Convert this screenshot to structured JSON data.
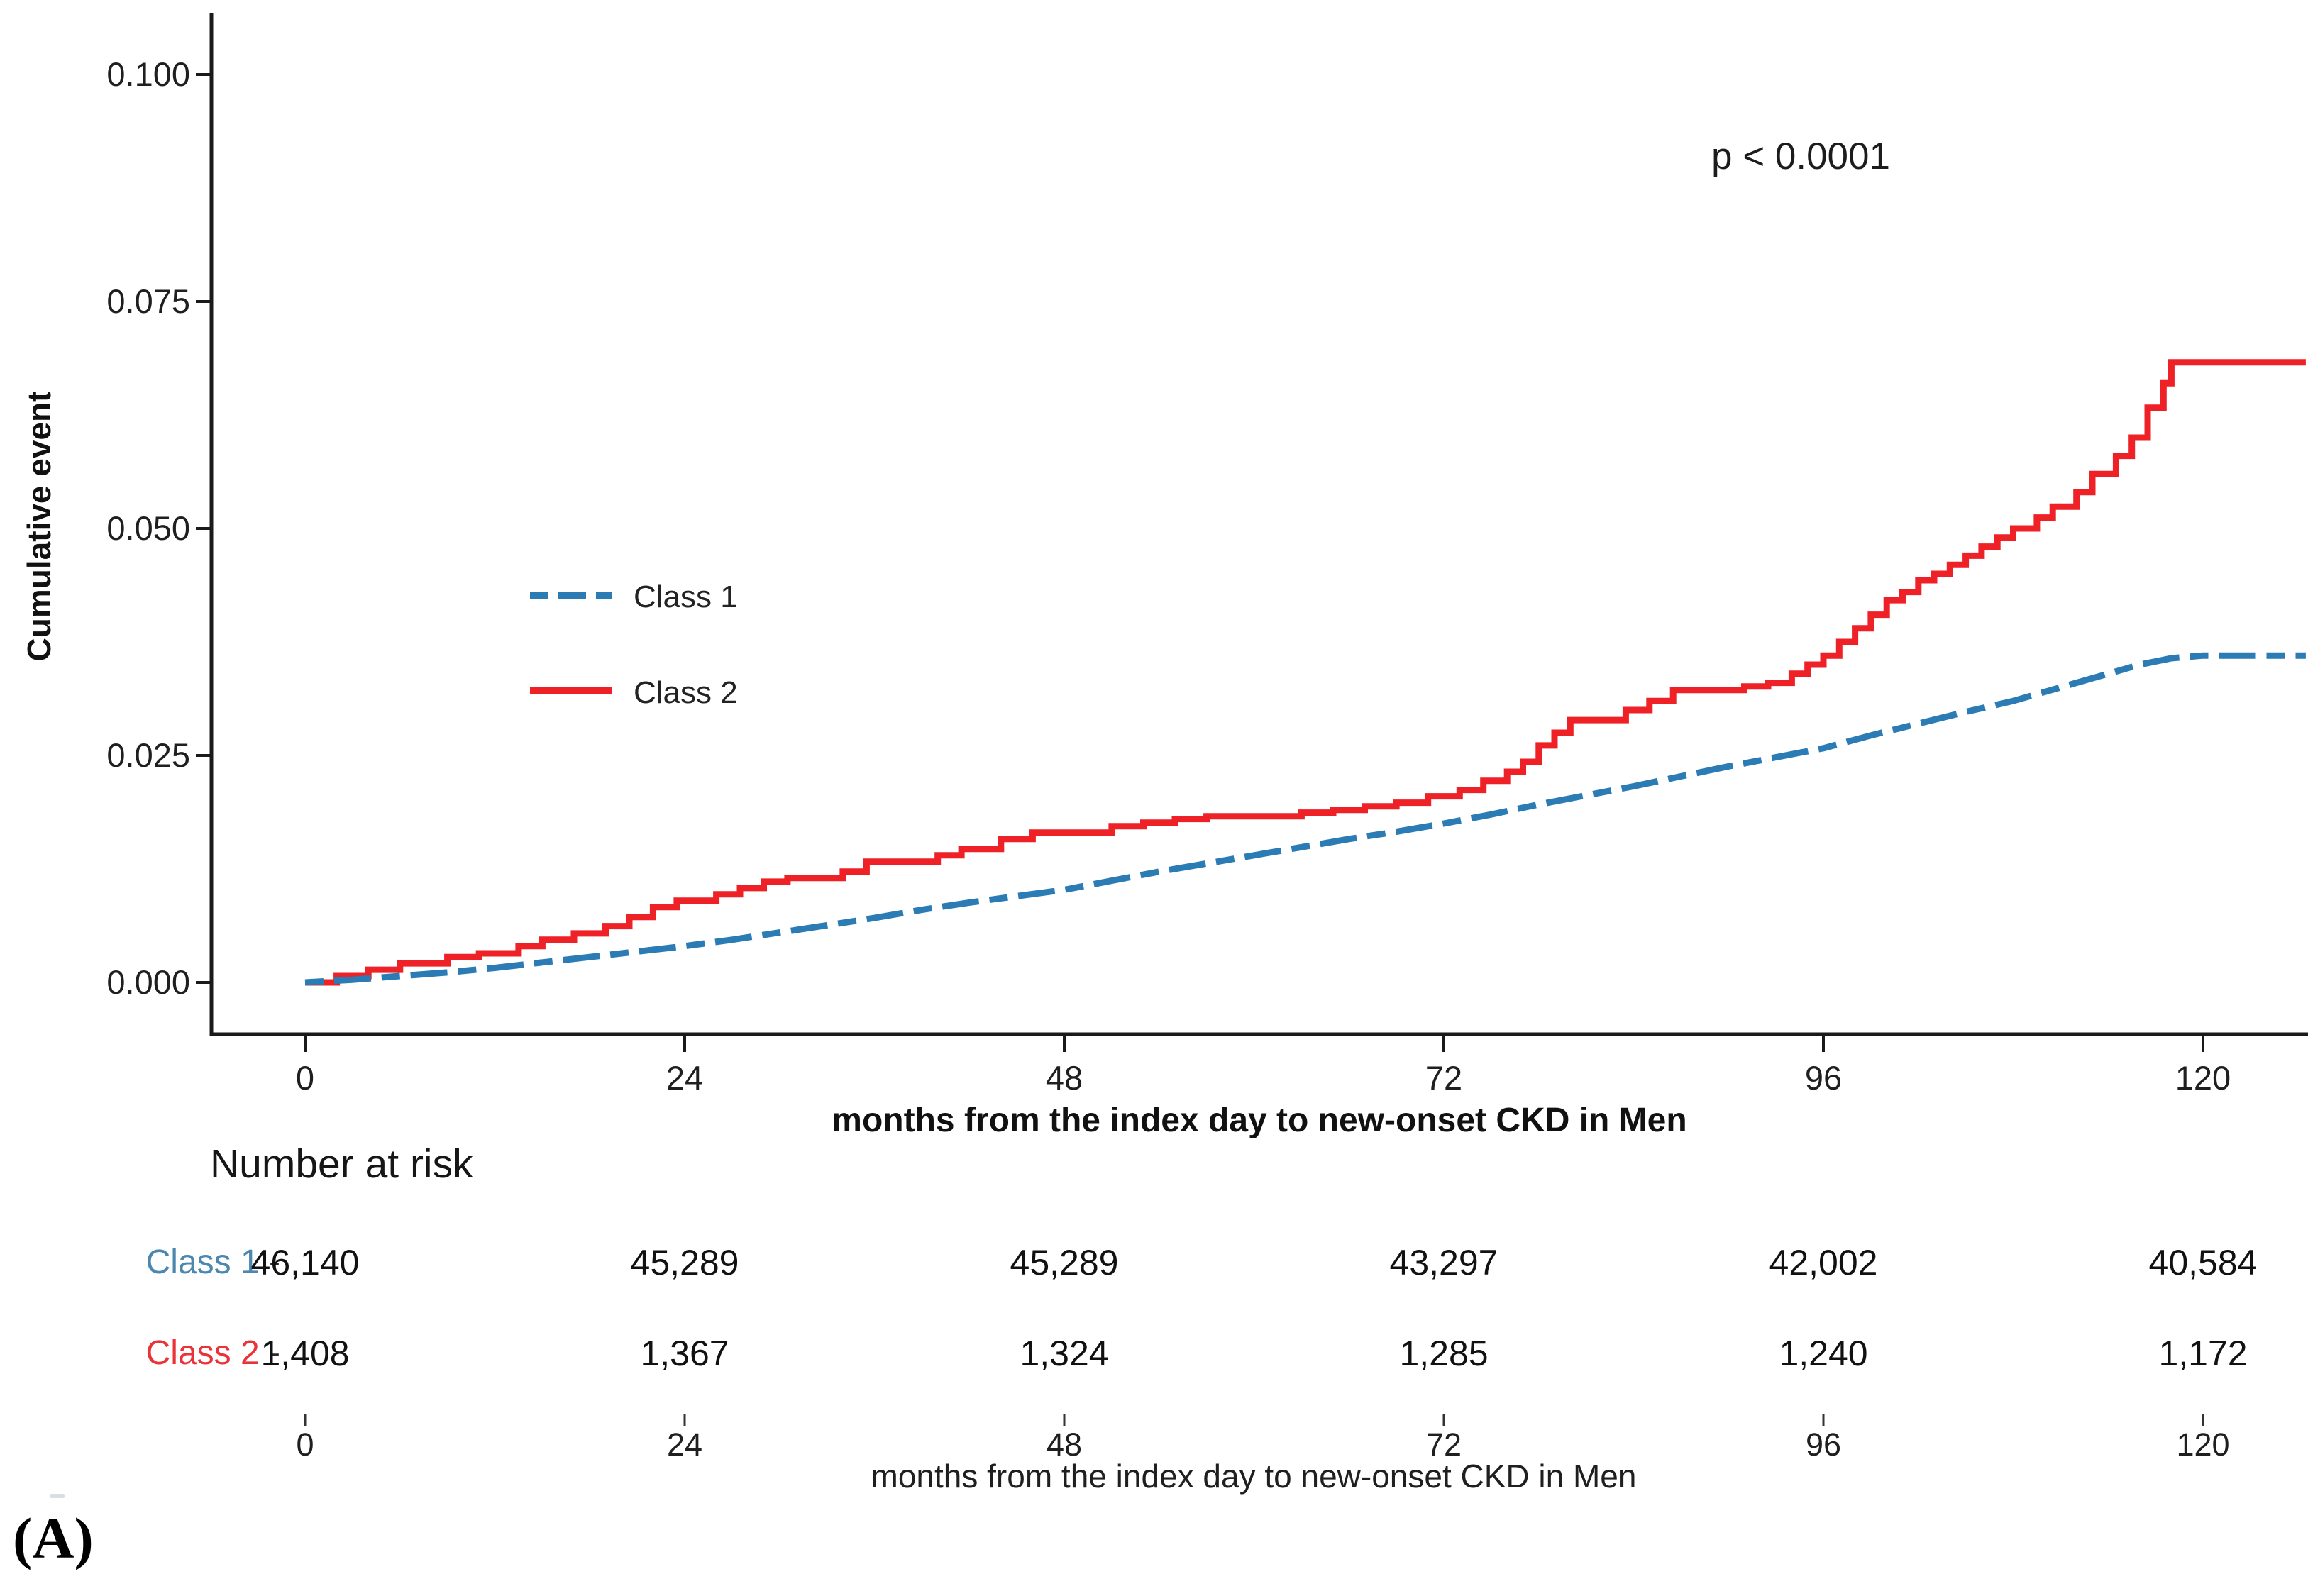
{
  "figure_label": "(A)",
  "plot": {
    "p_value": "p < 0.0001",
    "y_axis_title": "Cumulative event",
    "x_axis_title": "months from the index day to new-onset CKD in Men",
    "y_ticks": [
      "0.100",
      "0.075",
      "0.050",
      "0.025",
      "0.000"
    ],
    "x_ticks": [
      "0",
      "24",
      "48",
      "72",
      "96",
      "120"
    ]
  },
  "legend": {
    "items": [
      {
        "label": "Class 1",
        "color": "#2B7BB4",
        "linestyle": "dashdot"
      },
      {
        "label": "Class 2",
        "color": "#EE2126",
        "linestyle": "solid"
      }
    ]
  },
  "chart_data": {
    "type": "line",
    "subtype": "kaplan-meier cumulative incidence step curves",
    "title": "",
    "xlabel": "months from the index day to new-onset CKD in Men",
    "ylabel": "Cumulative event",
    "xlim": [
      0,
      126.5
    ],
    "ylim": [
      0,
      0.1
    ],
    "x_tick_values": [
      0,
      24,
      48,
      72,
      96,
      120
    ],
    "y_tick_values": [
      0.0,
      0.025,
      0.05,
      0.075,
      0.1
    ],
    "annotation": "p < 0.0001",
    "grid": false,
    "legend_position": "inside-left-middle",
    "series": [
      {
        "name": "Class 1",
        "color": "#2B7BB4",
        "linestyle": "dashdot",
        "step": false,
        "points": [
          [
            0,
            0
          ],
          [
            3,
            0.0003
          ],
          [
            6,
            0.0007
          ],
          [
            9,
            0.0011
          ],
          [
            12,
            0.0016
          ],
          [
            15,
            0.0022
          ],
          [
            18,
            0.0028
          ],
          [
            21,
            0.0034
          ],
          [
            24,
            0.004
          ],
          [
            27,
            0.0047
          ],
          [
            30,
            0.0055
          ],
          [
            33,
            0.0063
          ],
          [
            36,
            0.0071
          ],
          [
            39,
            0.008
          ],
          [
            42,
            0.0088
          ],
          [
            45,
            0.0095
          ],
          [
            48,
            0.0102
          ],
          [
            51,
            0.0112
          ],
          [
            54,
            0.0122
          ],
          [
            57,
            0.0131
          ],
          [
            60,
            0.014
          ],
          [
            63,
            0.0149
          ],
          [
            66,
            0.0158
          ],
          [
            69,
            0.0166
          ],
          [
            72,
            0.0175
          ],
          [
            75,
            0.0185
          ],
          [
            78,
            0.0196
          ],
          [
            81,
            0.0206
          ],
          [
            84,
            0.0216
          ],
          [
            87,
            0.0227
          ],
          [
            90,
            0.0238
          ],
          [
            93,
            0.0248
          ],
          [
            96,
            0.0258
          ],
          [
            99,
            0.0272
          ],
          [
            102,
            0.0285
          ],
          [
            105,
            0.0298
          ],
          [
            108,
            0.031
          ],
          [
            111,
            0.0325
          ],
          [
            114,
            0.034
          ],
          [
            116,
            0.035
          ],
          [
            118,
            0.0357
          ],
          [
            120,
            0.036
          ],
          [
            126.5,
            0.036
          ]
        ]
      },
      {
        "name": "Class 2",
        "color": "#EE2126",
        "linestyle": "solid",
        "step": true,
        "points": [
          [
            0,
            0
          ],
          [
            2,
            0.0007
          ],
          [
            4,
            0.0014
          ],
          [
            6,
            0.0021
          ],
          [
            9,
            0.0028
          ],
          [
            11,
            0.0032
          ],
          [
            13.5,
            0.004
          ],
          [
            15,
            0.0047
          ],
          [
            17,
            0.0054
          ],
          [
            19,
            0.0062
          ],
          [
            20.5,
            0.0072
          ],
          [
            22,
            0.0083
          ],
          [
            23.5,
            0.009
          ],
          [
            26,
            0.0097
          ],
          [
            27.5,
            0.0104
          ],
          [
            29,
            0.0111
          ],
          [
            30.5,
            0.0115
          ],
          [
            34,
            0.0122
          ],
          [
            35.5,
            0.0133
          ],
          [
            40,
            0.014
          ],
          [
            41.5,
            0.0147
          ],
          [
            44,
            0.0158
          ],
          [
            46,
            0.0165
          ],
          [
            51,
            0.0172
          ],
          [
            53,
            0.0176
          ],
          [
            55,
            0.018
          ],
          [
            57,
            0.0183
          ],
          [
            63,
            0.0187
          ],
          [
            65,
            0.019
          ],
          [
            67,
            0.0194
          ],
          [
            69,
            0.0198
          ],
          [
            71,
            0.0205
          ],
          [
            73,
            0.0212
          ],
          [
            74.5,
            0.0222
          ],
          [
            76,
            0.0232
          ],
          [
            77,
            0.0243
          ],
          [
            78,
            0.0261
          ],
          [
            79,
            0.0275
          ],
          [
            80,
            0.0289
          ],
          [
            83.5,
            0.03
          ],
          [
            85,
            0.031
          ],
          [
            86.5,
            0.0322
          ],
          [
            91,
            0.0326
          ],
          [
            92.5,
            0.033
          ],
          [
            94,
            0.034
          ],
          [
            95,
            0.035
          ],
          [
            96,
            0.036
          ],
          [
            97,
            0.0375
          ],
          [
            98,
            0.039
          ],
          [
            99,
            0.0405
          ],
          [
            100,
            0.0421
          ],
          [
            101,
            0.043
          ],
          [
            102,
            0.0443
          ],
          [
            103,
            0.045
          ],
          [
            104,
            0.046
          ],
          [
            105,
            0.047
          ],
          [
            106,
            0.048
          ],
          [
            107,
            0.049
          ],
          [
            108,
            0.05
          ],
          [
            109.5,
            0.0512
          ],
          [
            110.5,
            0.0524
          ],
          [
            112,
            0.054
          ],
          [
            113,
            0.056
          ],
          [
            114.5,
            0.058
          ],
          [
            115.5,
            0.06
          ],
          [
            116.5,
            0.0633
          ],
          [
            117.5,
            0.066
          ],
          [
            118,
            0.0683
          ],
          [
            126.5,
            0.0683
          ]
        ]
      }
    ]
  },
  "risk_table": {
    "title": "Number at risk",
    "dash": "-",
    "x_ticks": [
      "0",
      "24",
      "48",
      "72",
      "96",
      "120"
    ],
    "x_axis_title": "months from the index day to new-onset CKD in Men",
    "rows": [
      {
        "label": "Class 1",
        "color": "#4C87B0",
        "values": [
          "46,140",
          "45,289",
          "45,289",
          "43,297",
          "42,002",
          "40,584"
        ]
      },
      {
        "label": "Class 2",
        "color": "#E93338",
        "values": [
          "1,408",
          "1,367",
          "1,324",
          "1,285",
          "1,240",
          "1,172"
        ]
      }
    ]
  }
}
